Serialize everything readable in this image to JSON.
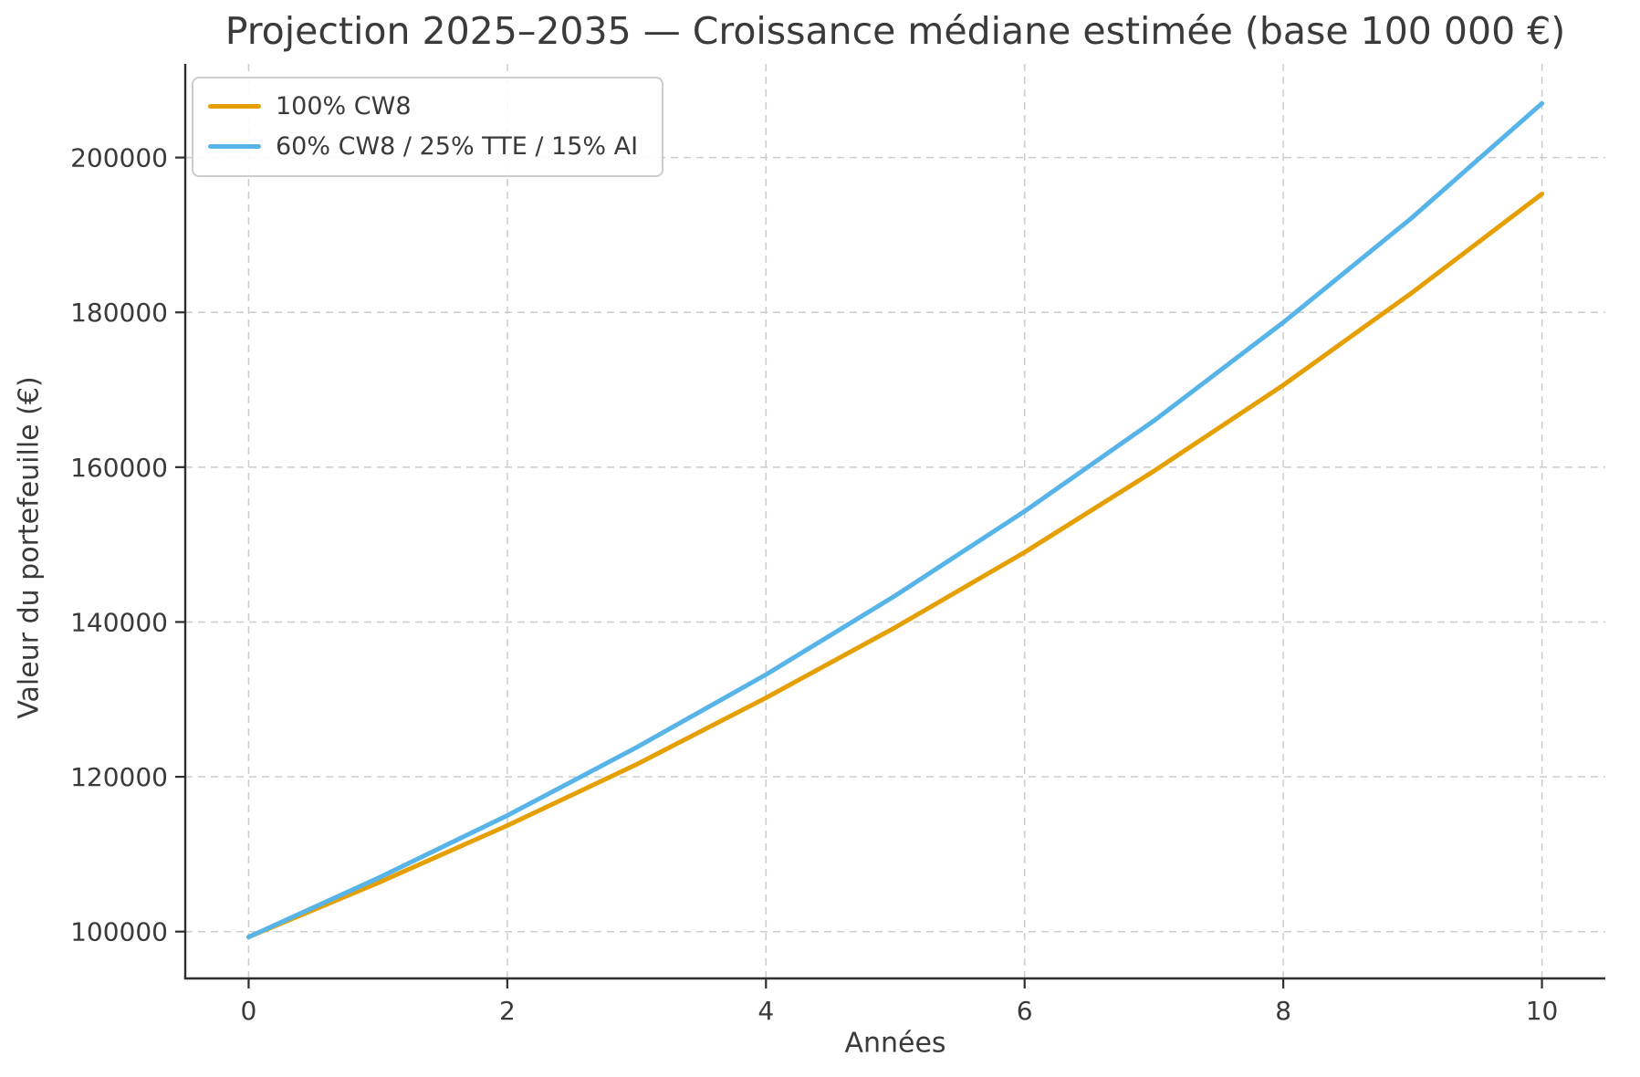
{
  "chart_data": {
    "type": "line",
    "title": "Projection 2025–2035 — Croissance médiane estimée (base 100 000 €)",
    "xlabel": "Années",
    "ylabel": "Valeur du portefeuille (€)",
    "x": [
      0,
      1,
      2,
      3,
      4,
      5,
      6,
      7,
      8,
      9,
      10
    ],
    "series": [
      {
        "name": "100% CW8",
        "color": "#E69F00",
        "values": [
          99300,
          106300,
          113700,
          121600,
          130200,
          139300,
          149000,
          159500,
          170600,
          182600,
          195300
        ]
      },
      {
        "name": "60% CW8 / 25% TTE / 15% AI",
        "color": "#56B4E9",
        "values": [
          99300,
          106900,
          115000,
          123800,
          133200,
          143400,
          154300,
          166000,
          178700,
          192300,
          207000
        ]
      }
    ],
    "x_ticks": [
      0,
      2,
      4,
      6,
      8,
      10
    ],
    "y_ticks": [
      100000,
      120000,
      140000,
      160000,
      180000,
      200000
    ],
    "xlim": [
      -0.49,
      10.49
    ],
    "ylim": [
      93950,
      212100
    ],
    "grid": true,
    "legend_position": "upper-left",
    "colors": {
      "grid": "#cccccc",
      "spine": "#2e2e2e",
      "text": "#3a3a3a",
      "background": "#ffffff"
    }
  }
}
